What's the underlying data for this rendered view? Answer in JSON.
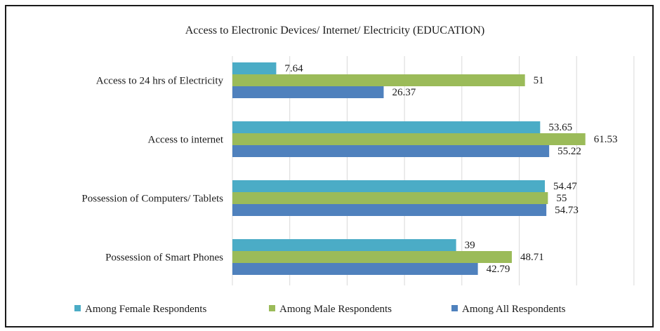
{
  "chart_data": {
    "type": "bar",
    "orientation": "horizontal",
    "title": "Access to Electronic  Devices/ Internet/ Electricity  (EDUCATION)",
    "categories": [
      "Access to 24 hrs of Electricity",
      "Access to internet",
      "Possession of Computers/ Tablets",
      "Possession of Smart Phones"
    ],
    "series": [
      {
        "name": "Among Female Respondents",
        "color": "#4bacc6",
        "values": [
          7.64,
          53.65,
          54.47,
          39
        ],
        "labels": [
          "7.64",
          "53.65",
          "54.47",
          "39"
        ]
      },
      {
        "name": "Among Male Respondents",
        "color": "#9bbb59",
        "values": [
          51,
          61.53,
          55,
          48.71
        ],
        "labels": [
          "51",
          "61.53",
          "55",
          "48.71"
        ]
      },
      {
        "name": "Among All Respondents",
        "color": "#4f81bd",
        "values": [
          26.37,
          55.22,
          54.73,
          42.79
        ],
        "labels": [
          "26.37",
          "55.22",
          "54.73",
          "42.79"
        ]
      }
    ],
    "xlim": [
      0,
      70
    ],
    "x_tick_step": 10,
    "x_tick_labels_shown": false,
    "grid": "vertical",
    "legend_position": "bottom"
  }
}
